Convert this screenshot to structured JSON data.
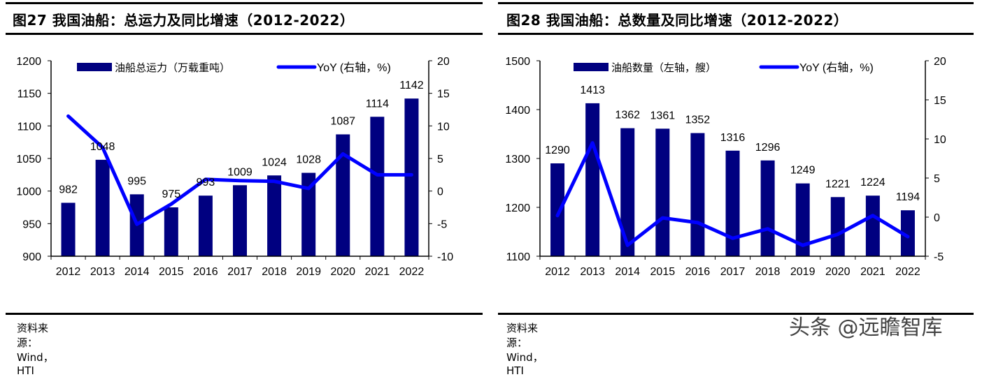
{
  "charts_meta": {
    "left": {
      "title": "图27  我国油船：总运力及同比增速（2012-2022）",
      "source": "资料来源：Wind，HTI"
    },
    "right": {
      "title": "图28  我国油船：总数量及同比增速（2012-2022）",
      "source": "资料来源：Wind，HTI"
    }
  },
  "watermark": "头条 @远瞻智库",
  "colors": {
    "bar": "#000080",
    "line": "#0000ff"
  },
  "chart_data": [
    {
      "type": "bar+line",
      "title": "图27  我国油船：总运力及同比增速（2012-2022）",
      "categories": [
        "2012",
        "2013",
        "2014",
        "2015",
        "2016",
        "2017",
        "2018",
        "2019",
        "2020",
        "2021",
        "2022"
      ],
      "series": [
        {
          "name": "油船总运力（万载重吨）",
          "type": "bar",
          "axis": "left",
          "values": [
            982,
            1048,
            995,
            975,
            993,
            1009,
            1024,
            1028,
            1087,
            1114,
            1142
          ]
        },
        {
          "name": "YoY (右轴，%)",
          "type": "line",
          "axis": "right",
          "values": [
            11.5,
            6.7,
            -5.1,
            -2.0,
            1.8,
            1.6,
            1.5,
            0.4,
            5.7,
            2.5,
            2.5
          ]
        }
      ],
      "ylim_left": [
        900,
        1200
      ],
      "yticks_left": [
        900,
        950,
        1000,
        1050,
        1100,
        1150,
        1200
      ],
      "ylim_right": [
        -10,
        20
      ],
      "yticks_right": [
        -10,
        -5,
        0,
        5,
        10,
        15,
        20
      ],
      "legend": "top",
      "grid": false
    },
    {
      "type": "bar+line",
      "title": "图28  我国油船：总数量及同比增速（2012-2022）",
      "categories": [
        "2012",
        "2013",
        "2014",
        "2015",
        "2016",
        "2017",
        "2018",
        "2019",
        "2020",
        "2021",
        "2022"
      ],
      "series": [
        {
          "name": "油船数量（左轴，艘）",
          "type": "bar",
          "axis": "left",
          "values": [
            1290,
            1413,
            1362,
            1361,
            1352,
            1316,
            1296,
            1249,
            1221,
            1224,
            1194
          ]
        },
        {
          "name": "YoY (右轴，%)",
          "type": "line",
          "axis": "right",
          "values": [
            0.2,
            9.5,
            -3.6,
            -0.1,
            -0.7,
            -2.7,
            -1.5,
            -3.6,
            -2.2,
            0.2,
            -2.5
          ]
        }
      ],
      "ylim_left": [
        1100,
        1500
      ],
      "yticks_left": [
        1100,
        1200,
        1300,
        1400,
        1500
      ],
      "ylim_right": [
        -5,
        20
      ],
      "yticks_right": [
        -5,
        0,
        5,
        10,
        15,
        20
      ],
      "legend": "top",
      "grid": false
    }
  ]
}
